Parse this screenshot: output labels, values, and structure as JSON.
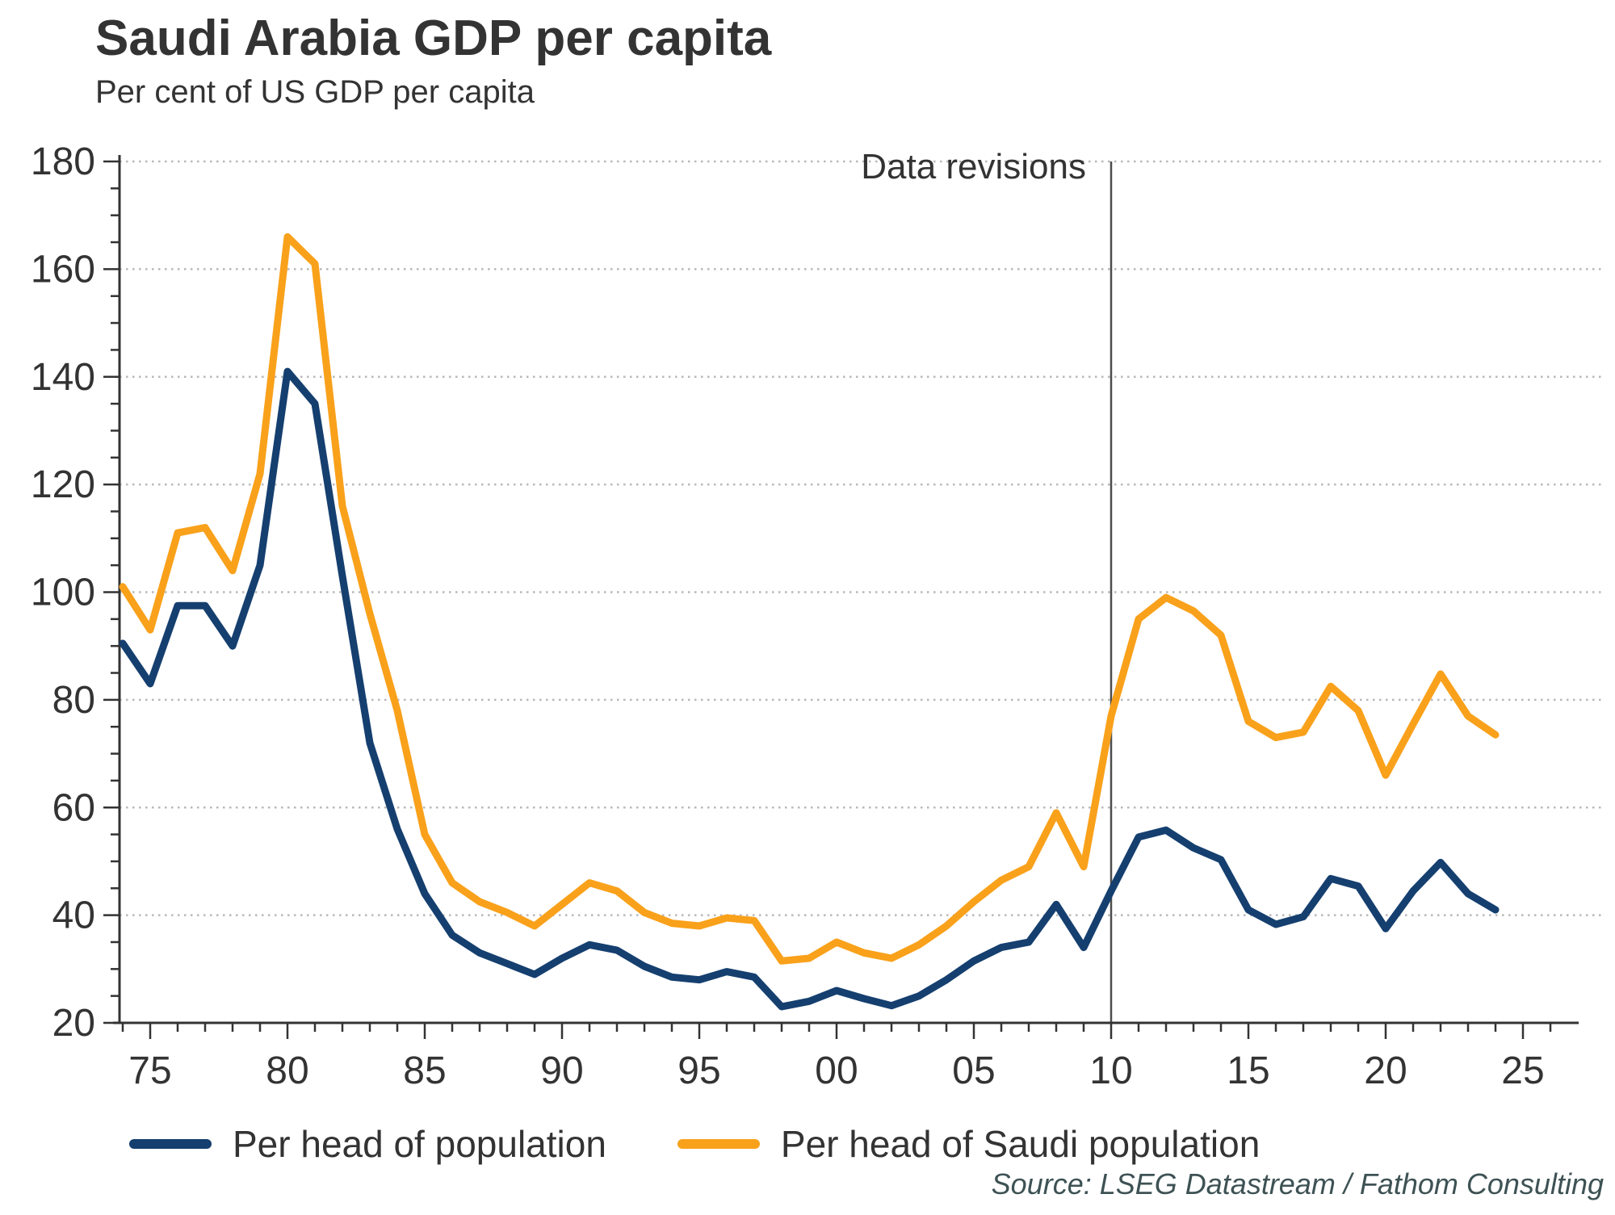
{
  "header": {
    "title": "Saudi Arabia GDP per capita",
    "subtitle": "Per cent of US GDP per capita"
  },
  "annotation": {
    "label": "Data revisions",
    "year": 2010
  },
  "legend": {
    "items": [
      {
        "label": "Per head of population",
        "color": "#153f6f"
      },
      {
        "label": "Per head of Saudi population",
        "color": "#f9a11b"
      }
    ]
  },
  "source": {
    "text": "Source: LSEG Datastream / Fathom Consulting"
  },
  "chart_data": {
    "type": "line",
    "title": "Saudi Arabia GDP per capita",
    "subtitle": "Per cent of US GDP per capita",
    "xlabel": "",
    "ylabel": "Per cent of US GDP per capita",
    "x": [
      1974,
      1975,
      1976,
      1977,
      1978,
      1979,
      1980,
      1981,
      1982,
      1983,
      1984,
      1985,
      1986,
      1987,
      1988,
      1989,
      1990,
      1991,
      1992,
      1993,
      1994,
      1995,
      1996,
      1997,
      1998,
      1999,
      2000,
      2001,
      2002,
      2003,
      2004,
      2005,
      2006,
      2007,
      2008,
      2009,
      2010,
      2011,
      2012,
      2013,
      2014,
      2015,
      2016,
      2017,
      2018,
      2019,
      2020,
      2021,
      2022,
      2023,
      2024
    ],
    "series": [
      {
        "name": "Per head of population",
        "color": "#153f6f",
        "values": [
          90.5,
          83,
          97.5,
          97.5,
          90,
          105,
          141,
          135,
          103,
          72,
          56,
          44,
          36.3,
          33,
          31,
          29,
          32,
          34.5,
          33.5,
          30.5,
          28.5,
          28,
          29.5,
          28.5,
          23,
          24,
          26,
          24.5,
          23.2,
          25,
          28,
          31.5,
          34,
          35,
          42,
          34,
          44.5,
          54.5,
          55.8,
          52.5,
          50.3,
          41,
          38.3,
          39.7,
          46.8,
          45.4,
          37.5,
          44.5,
          49.8,
          44,
          41
        ]
      },
      {
        "name": "Per head of Saudi population",
        "color": "#f9a11b",
        "values": [
          101,
          93,
          111,
          112,
          104,
          122,
          166,
          161,
          116,
          96,
          78,
          55,
          46,
          42.5,
          40.5,
          38,
          42,
          46,
          44.5,
          40.5,
          38.5,
          38,
          39.5,
          39,
          31.5,
          32,
          35,
          33,
          32,
          34.5,
          38,
          42.5,
          46.5,
          49,
          59,
          49,
          77,
          95,
          99,
          96.5,
          92,
          76,
          73,
          74,
          82.5,
          78,
          66,
          75.5,
          84.8,
          77,
          73.5
        ]
      },
      {
        "name": "Data revisions marker",
        "annotation_line_x": 2010
      }
    ],
    "ylim": [
      20,
      180
    ],
    "y_tick_step": 20,
    "y_minor_step": 5,
    "y_ticks": [
      20,
      40,
      60,
      80,
      100,
      120,
      140,
      160,
      180
    ],
    "x_tick_years": [
      1975,
      1980,
      1985,
      1990,
      1995,
      2000,
      2005,
      2010,
      2015,
      2020,
      2025
    ],
    "x_tick_labels": [
      "75",
      "80",
      "85",
      "90",
      "95",
      "00",
      "05",
      "10",
      "15",
      "20",
      "25"
    ],
    "grid": "horizontal-dotted",
    "legend_position": "bottom",
    "colors": {
      "axis": "#333333",
      "grid": "#b8b8b8",
      "annotation_line": "#4d4d4d",
      "text": "#333333",
      "source_text": "#3e5254"
    }
  }
}
